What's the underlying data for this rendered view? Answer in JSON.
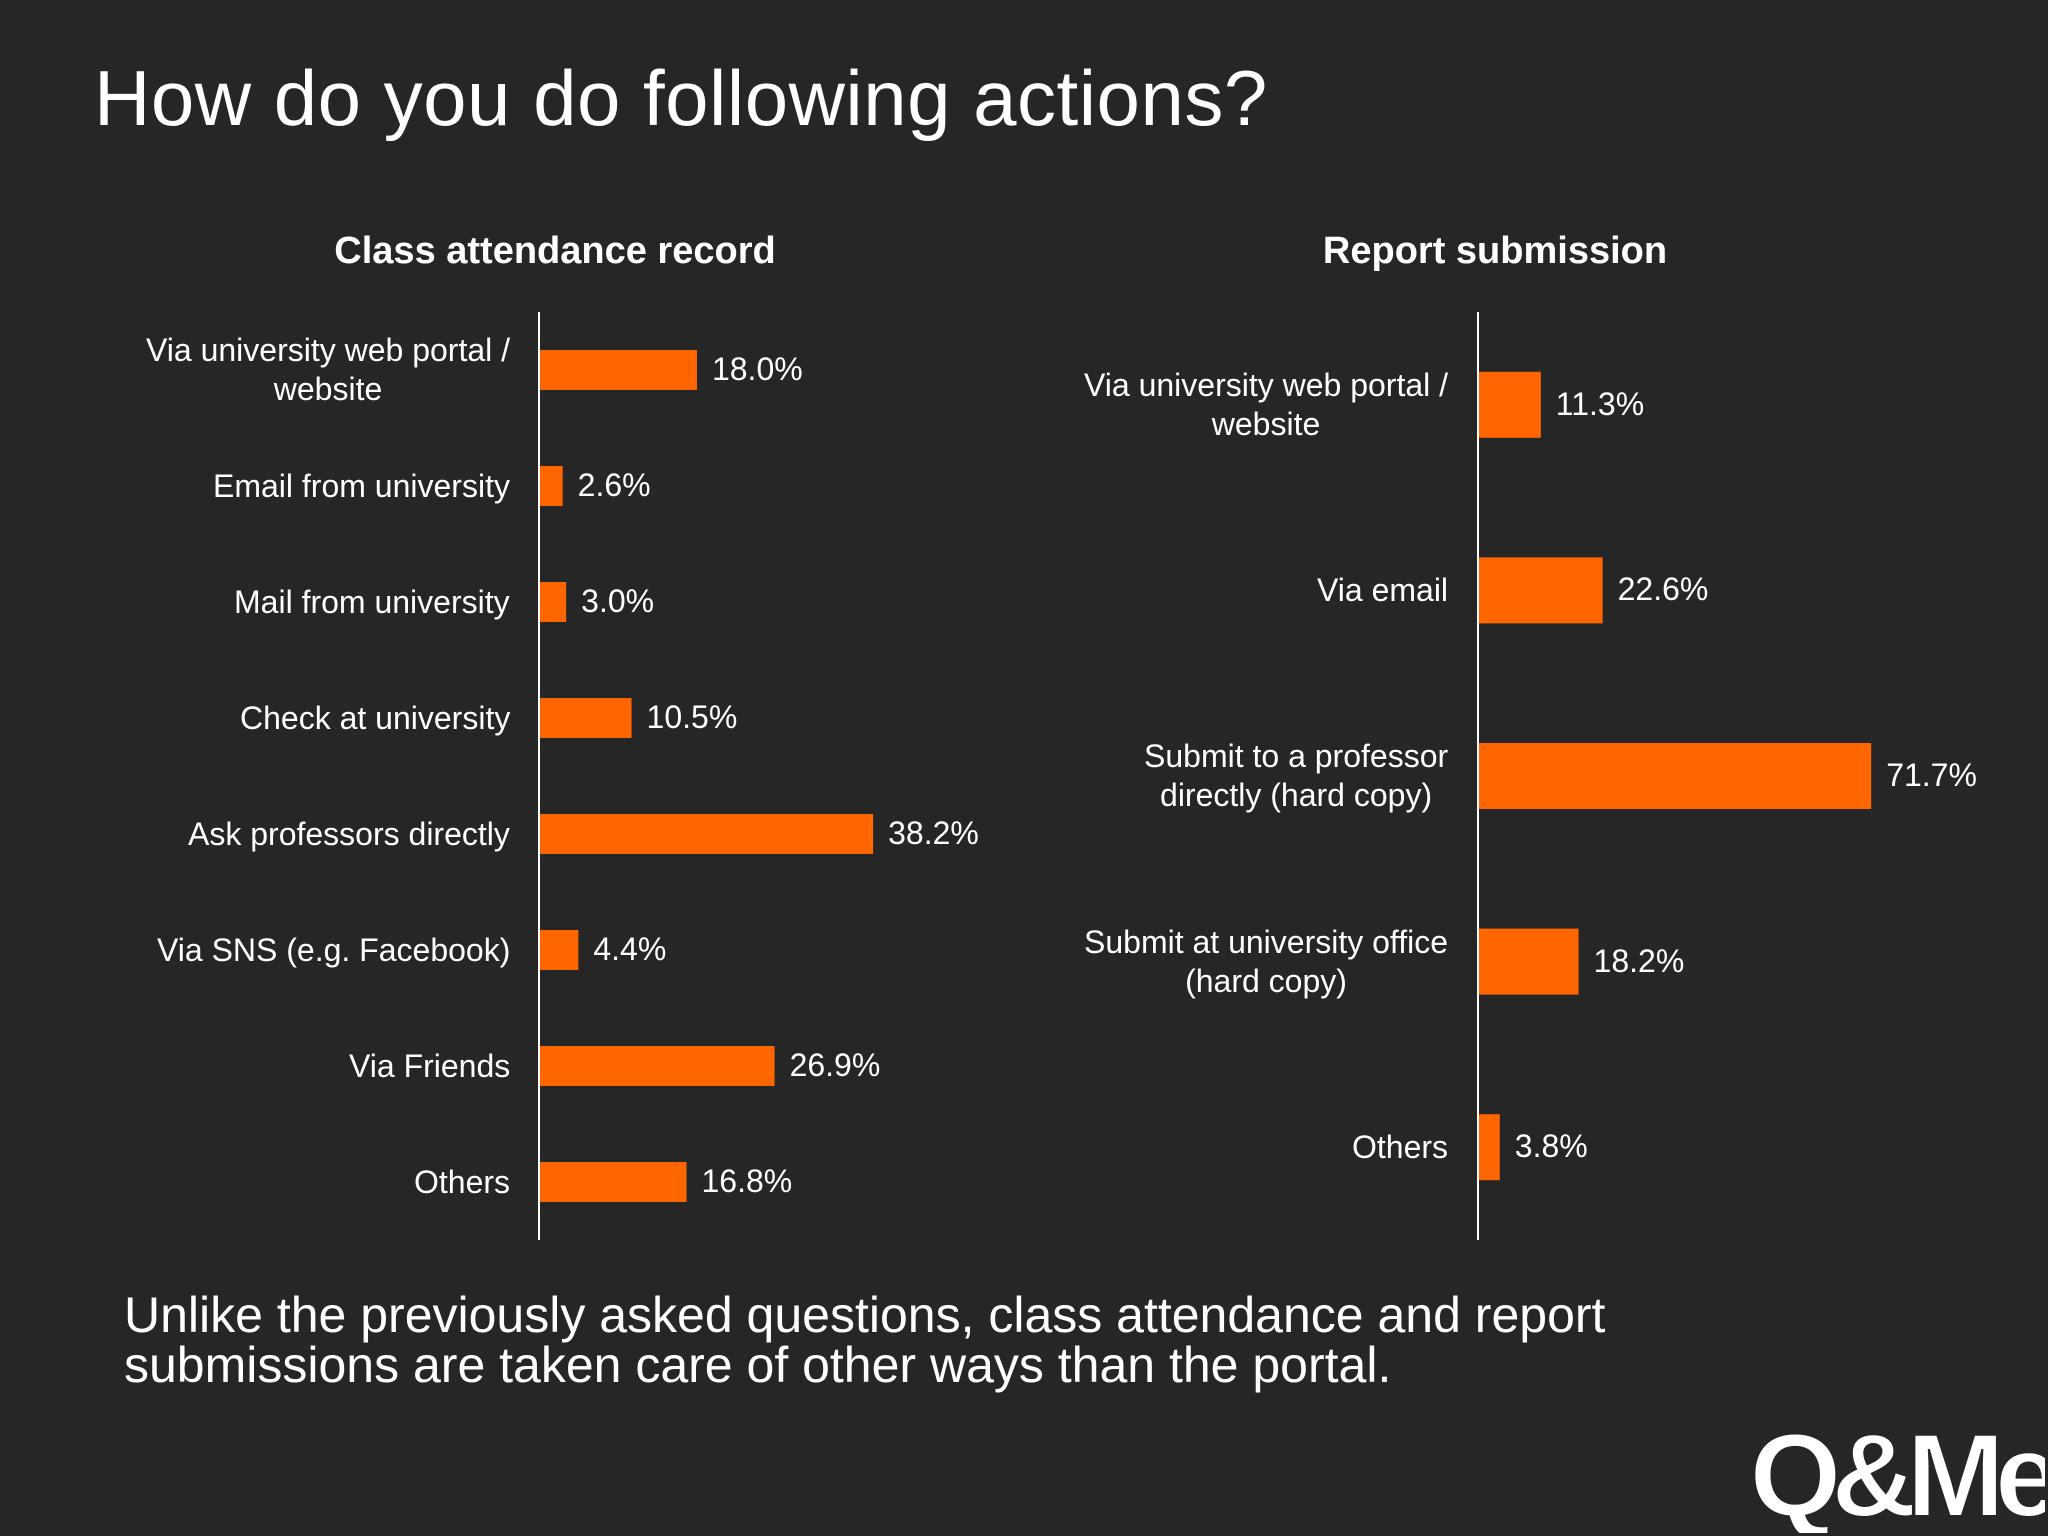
{
  "page": {
    "title": "How do you do following actions?",
    "footnote": "Unlike the previously asked questions, class attendance and report\nsubmissions are taken care of other ways than the portal.",
    "logo_text": "Q&Me"
  },
  "colors": {
    "background": "#262626",
    "bar": "#ff6600",
    "text": "#ffffff",
    "axis": "#ffffff"
  },
  "chart_data": [
    {
      "type": "bar",
      "orientation": "horizontal",
      "title": "Class attendance record",
      "categories": [
        [
          "Via university web portal /",
          "website"
        ],
        [
          "Email from university"
        ],
        [
          "Mail from university"
        ],
        [
          "Check at university"
        ],
        [
          "Ask professors directly"
        ],
        [
          "Via SNS (e.g. Facebook)"
        ],
        [
          "Via Friends"
        ],
        [
          "Others"
        ]
      ],
      "values": [
        18.0,
        2.6,
        3.0,
        10.5,
        38.2,
        4.4,
        26.9,
        16.8
      ],
      "value_labels": [
        "18.0%",
        "2.6%",
        "3.0%",
        "10.5%",
        "38.2%",
        "4.4%",
        "26.9%",
        "16.8%"
      ],
      "xlim": [
        0,
        45
      ],
      "grid": false,
      "legend": "none"
    },
    {
      "type": "bar",
      "orientation": "horizontal",
      "title": "Report submission",
      "categories": [
        [
          "Via university web portal /",
          "website"
        ],
        [
          "Via email"
        ],
        [
          "Submit to a professor",
          "directly (hard copy)"
        ],
        [
          "Submit at university office",
          "(hard copy)"
        ],
        [
          "Others"
        ]
      ],
      "values": [
        11.3,
        22.6,
        71.7,
        18.2,
        3.8
      ],
      "value_labels": [
        "11.3%",
        "22.6%",
        "71.7%",
        "18.2%",
        "3.8%"
      ],
      "xlim": [
        0,
        75
      ],
      "grid": false,
      "legend": "none"
    }
  ]
}
